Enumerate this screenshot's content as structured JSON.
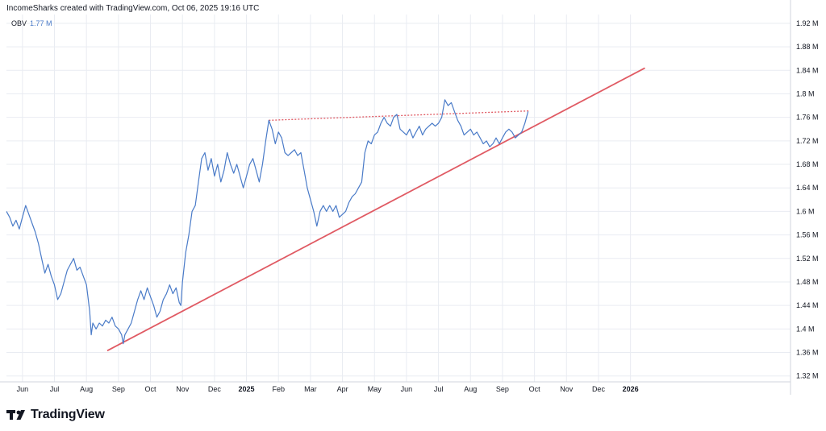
{
  "header": {
    "caption": "IncomeSharks created with TradingView.com, Oct 06, 2025 19:16 UTC"
  },
  "indicator": {
    "name": "OBV",
    "value": "1.77 M"
  },
  "brand": {
    "name": "TradingView"
  },
  "colors": {
    "series": "#4a7bc8",
    "trendline": "#e05a63",
    "grid": "#e9ecf2",
    "axis_text": "#131722"
  },
  "chart_data": {
    "type": "line",
    "title": "",
    "xlabel": "",
    "ylabel": "OBV",
    "ylim": [
      1.31,
      1.935
    ],
    "xlim": [
      0,
      24.5
    ],
    "x_unit": "months since 2024-06-01",
    "y_ticks": [
      1.32,
      1.36,
      1.4,
      1.44,
      1.48,
      1.52,
      1.56,
      1.6,
      1.64,
      1.68,
      1.72,
      1.76,
      1.8,
      1.84,
      1.88,
      1.92
    ],
    "y_tick_labels": [
      "1.32 M",
      "1.36 M",
      "1.4 M",
      "1.44 M",
      "1.48 M",
      "1.52 M",
      "1.56 M",
      "1.6 M",
      "1.64 M",
      "1.68 M",
      "1.72 M",
      "1.76 M",
      "1.8 M",
      "1.84 M",
      "1.88 M",
      "1.92 M"
    ],
    "x_ticks": [
      {
        "x": 0.5,
        "label": "Jun",
        "bold": false
      },
      {
        "x": 1.5,
        "label": "Jul",
        "bold": false
      },
      {
        "x": 2.5,
        "label": "Aug",
        "bold": false
      },
      {
        "x": 3.5,
        "label": "Sep",
        "bold": false
      },
      {
        "x": 4.5,
        "label": "Oct",
        "bold": false
      },
      {
        "x": 5.5,
        "label": "Nov",
        "bold": false
      },
      {
        "x": 6.5,
        "label": "Dec",
        "bold": false
      },
      {
        "x": 7.5,
        "label": "2025",
        "bold": true
      },
      {
        "x": 8.5,
        "label": "Feb",
        "bold": false
      },
      {
        "x": 9.5,
        "label": "Mar",
        "bold": false
      },
      {
        "x": 10.5,
        "label": "Apr",
        "bold": false
      },
      {
        "x": 11.5,
        "label": "May",
        "bold": false
      },
      {
        "x": 12.5,
        "label": "Jun",
        "bold": false
      },
      {
        "x": 13.5,
        "label": "Jul",
        "bold": false
      },
      {
        "x": 14.5,
        "label": "Aug",
        "bold": false
      },
      {
        "x": 15.5,
        "label": "Sep",
        "bold": false
      },
      {
        "x": 16.5,
        "label": "Oct",
        "bold": false
      },
      {
        "x": 17.5,
        "label": "Nov",
        "bold": false
      },
      {
        "x": 18.5,
        "label": "Dec",
        "bold": false
      },
      {
        "x": 19.5,
        "label": "2026",
        "bold": true
      }
    ],
    "series": [
      {
        "name": "OBV",
        "points": [
          [
            0.0,
            1.6
          ],
          [
            0.1,
            1.59
          ],
          [
            0.2,
            1.575
          ],
          [
            0.3,
            1.585
          ],
          [
            0.4,
            1.57
          ],
          [
            0.5,
            1.59
          ],
          [
            0.6,
            1.61
          ],
          [
            0.7,
            1.595
          ],
          [
            0.8,
            1.58
          ],
          [
            0.9,
            1.565
          ],
          [
            1.0,
            1.545
          ],
          [
            1.1,
            1.52
          ],
          [
            1.2,
            1.495
          ],
          [
            1.3,
            1.51
          ],
          [
            1.4,
            1.49
          ],
          [
            1.5,
            1.475
          ],
          [
            1.6,
            1.45
          ],
          [
            1.7,
            1.46
          ],
          [
            1.8,
            1.48
          ],
          [
            1.9,
            1.5
          ],
          [
            2.0,
            1.51
          ],
          [
            2.1,
            1.52
          ],
          [
            2.2,
            1.5
          ],
          [
            2.3,
            1.505
          ],
          [
            2.4,
            1.49
          ],
          [
            2.5,
            1.475
          ],
          [
            2.6,
            1.43
          ],
          [
            2.65,
            1.39
          ],
          [
            2.7,
            1.41
          ],
          [
            2.8,
            1.4
          ],
          [
            2.9,
            1.41
          ],
          [
            3.0,
            1.405
          ],
          [
            3.1,
            1.415
          ],
          [
            3.2,
            1.41
          ],
          [
            3.3,
            1.42
          ],
          [
            3.4,
            1.405
          ],
          [
            3.5,
            1.4
          ],
          [
            3.6,
            1.39
          ],
          [
            3.65,
            1.375
          ],
          [
            3.7,
            1.39
          ],
          [
            3.8,
            1.4
          ],
          [
            3.9,
            1.41
          ],
          [
            4.0,
            1.43
          ],
          [
            4.1,
            1.45
          ],
          [
            4.2,
            1.465
          ],
          [
            4.3,
            1.45
          ],
          [
            4.4,
            1.47
          ],
          [
            4.5,
            1.455
          ],
          [
            4.6,
            1.44
          ],
          [
            4.7,
            1.42
          ],
          [
            4.8,
            1.43
          ],
          [
            4.9,
            1.45
          ],
          [
            5.0,
            1.46
          ],
          [
            5.1,
            1.475
          ],
          [
            5.2,
            1.46
          ],
          [
            5.3,
            1.47
          ],
          [
            5.4,
            1.445
          ],
          [
            5.45,
            1.44
          ],
          [
            5.5,
            1.48
          ],
          [
            5.6,
            1.53
          ],
          [
            5.7,
            1.56
          ],
          [
            5.8,
            1.6
          ],
          [
            5.9,
            1.61
          ],
          [
            6.0,
            1.65
          ],
          [
            6.1,
            1.69
          ],
          [
            6.2,
            1.7
          ],
          [
            6.3,
            1.67
          ],
          [
            6.4,
            1.69
          ],
          [
            6.5,
            1.66
          ],
          [
            6.6,
            1.68
          ],
          [
            6.7,
            1.65
          ],
          [
            6.8,
            1.67
          ],
          [
            6.9,
            1.7
          ],
          [
            7.0,
            1.68
          ],
          [
            7.1,
            1.665
          ],
          [
            7.2,
            1.68
          ],
          [
            7.3,
            1.66
          ],
          [
            7.4,
            1.64
          ],
          [
            7.5,
            1.66
          ],
          [
            7.6,
            1.68
          ],
          [
            7.7,
            1.69
          ],
          [
            7.8,
            1.67
          ],
          [
            7.9,
            1.65
          ],
          [
            8.0,
            1.68
          ],
          [
            8.1,
            1.72
          ],
          [
            8.2,
            1.755
          ],
          [
            8.3,
            1.74
          ],
          [
            8.4,
            1.715
          ],
          [
            8.5,
            1.735
          ],
          [
            8.6,
            1.725
          ],
          [
            8.7,
            1.7
          ],
          [
            8.8,
            1.695
          ],
          [
            8.9,
            1.7
          ],
          [
            9.0,
            1.705
          ],
          [
            9.1,
            1.695
          ],
          [
            9.2,
            1.7
          ],
          [
            9.3,
            1.67
          ],
          [
            9.4,
            1.64
          ],
          [
            9.5,
            1.62
          ],
          [
            9.6,
            1.6
          ],
          [
            9.7,
            1.575
          ],
          [
            9.8,
            1.6
          ],
          [
            9.9,
            1.61
          ],
          [
            10.0,
            1.6
          ],
          [
            10.1,
            1.61
          ],
          [
            10.2,
            1.6
          ],
          [
            10.3,
            1.61
          ],
          [
            10.4,
            1.59
          ],
          [
            10.5,
            1.595
          ],
          [
            10.6,
            1.6
          ],
          [
            10.7,
            1.615
          ],
          [
            10.8,
            1.625
          ],
          [
            10.9,
            1.63
          ],
          [
            11.0,
            1.64
          ],
          [
            11.1,
            1.65
          ],
          [
            11.2,
            1.7
          ],
          [
            11.3,
            1.72
          ],
          [
            11.4,
            1.715
          ],
          [
            11.5,
            1.73
          ],
          [
            11.6,
            1.735
          ],
          [
            11.7,
            1.75
          ],
          [
            11.8,
            1.76
          ],
          [
            11.9,
            1.75
          ],
          [
            12.0,
            1.745
          ],
          [
            12.1,
            1.76
          ],
          [
            12.2,
            1.765
          ],
          [
            12.3,
            1.74
          ],
          [
            12.4,
            1.735
          ],
          [
            12.5,
            1.73
          ],
          [
            12.6,
            1.74
          ],
          [
            12.7,
            1.725
          ],
          [
            12.8,
            1.735
          ],
          [
            12.9,
            1.745
          ],
          [
            13.0,
            1.73
          ],
          [
            13.1,
            1.74
          ],
          [
            13.2,
            1.745
          ],
          [
            13.3,
            1.75
          ],
          [
            13.4,
            1.745
          ],
          [
            13.5,
            1.75
          ],
          [
            13.6,
            1.76
          ],
          [
            13.7,
            1.79
          ],
          [
            13.8,
            1.78
          ],
          [
            13.9,
            1.785
          ],
          [
            14.0,
            1.77
          ],
          [
            14.1,
            1.755
          ],
          [
            14.2,
            1.745
          ],
          [
            14.3,
            1.73
          ],
          [
            14.4,
            1.735
          ],
          [
            14.5,
            1.74
          ],
          [
            14.6,
            1.73
          ],
          [
            14.7,
            1.735
          ],
          [
            14.8,
            1.725
          ],
          [
            14.9,
            1.715
          ],
          [
            15.0,
            1.72
          ],
          [
            15.1,
            1.71
          ],
          [
            15.2,
            1.715
          ],
          [
            15.3,
            1.725
          ],
          [
            15.4,
            1.715
          ],
          [
            15.5,
            1.725
          ],
          [
            15.6,
            1.735
          ],
          [
            15.7,
            1.74
          ],
          [
            15.8,
            1.735
          ],
          [
            15.9,
            1.725
          ],
          [
            16.0,
            1.73
          ],
          [
            16.1,
            1.735
          ],
          [
            16.2,
            1.75
          ],
          [
            16.25,
            1.76
          ],
          [
            16.3,
            1.77
          ]
        ]
      }
    ],
    "trendlines": [
      {
        "name": "ascending support",
        "style": "solid",
        "from": [
          3.15,
          1.363
        ],
        "to": [
          19.95,
          1.844
        ]
      },
      {
        "name": "resistance",
        "style": "dotted",
        "from": [
          8.2,
          1.755
        ],
        "to": [
          16.35,
          1.771
        ]
      }
    ]
  }
}
